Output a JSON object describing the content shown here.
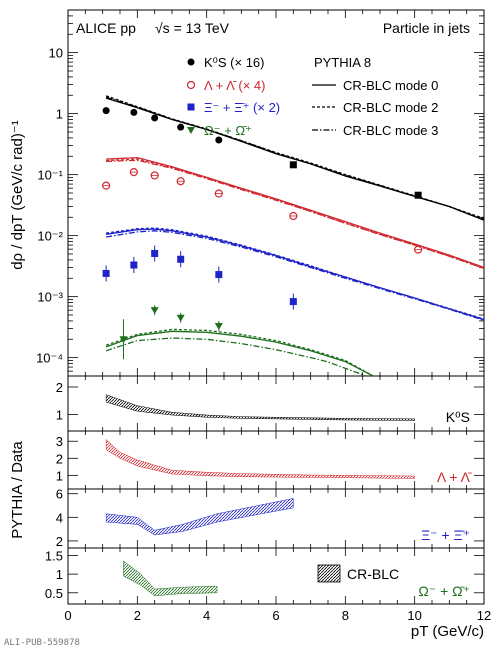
{
  "header": {
    "experiment": "ALICE pp",
    "energy": "√s = 13 TeV",
    "topic": "Particle in jets"
  },
  "legend_main": {
    "kshort": "K⁰S (× 16)",
    "lambda": "Λ + Λ̄ (× 4)",
    "xi": "Ξ⁻ + Ξ̄⁺ (× 2)",
    "omega": "Ω⁻ + Ω̄⁺",
    "generator": "PYTHIA 8",
    "mode0": "CR-BLC mode 0",
    "mode2": "CR-BLC mode 2",
    "mode3": "CR-BLC mode 3"
  },
  "ratio_labels": {
    "kshort": "K⁰S",
    "lambda": "Λ + Λ̄",
    "xi": "Ξ⁻ + Ξ̄⁺",
    "omega": "Ω⁻ + Ω̄⁺",
    "band": "CR-BLC"
  },
  "footer": {
    "pub_id": "ALI-PUB-559878"
  },
  "colors": {
    "kshort": "#000000",
    "lambda": "#d0282f",
    "xi": "#1f24c8",
    "omega": "#1e6e1e"
  },
  "chart_data": {
    "type": "scatter",
    "xlabel": "pT (GeV/c)",
    "ylabel_main": "dρ / dpT (GeV/c rad)⁻¹",
    "ylabel_ratio": "PYTHIA / Data",
    "xlim": [
      0,
      12
    ],
    "xticks": [
      "0",
      "2",
      "4",
      "6",
      "8",
      "10",
      "12"
    ],
    "main": {
      "yscale": "log",
      "ylim": [
        5e-05,
        50
      ],
      "yticks": [
        {
          "v": 0.0001,
          "label": "10⁻⁴"
        },
        {
          "v": 0.001,
          "label": "10⁻³"
        },
        {
          "v": 0.01,
          "label": "10⁻²"
        },
        {
          "v": 0.1,
          "label": "10⁻¹"
        },
        {
          "v": 1,
          "label": "1"
        },
        {
          "v": 10,
          "label": "10"
        }
      ],
      "data": [
        {
          "name": "kshort",
          "points": [
            [
              1.1,
              1.12
            ],
            [
              1.9,
              1.05
            ],
            [
              2.5,
              0.85
            ],
            [
              3.25,
              0.6
            ],
            [
              4.35,
              0.37
            ],
            [
              6.5,
              0.145
            ],
            [
              10.1,
              0.046
            ]
          ]
        },
        {
          "name": "lambda",
          "points": [
            [
              1.1,
              0.066
            ],
            [
              1.9,
              0.11
            ],
            [
              2.5,
              0.097
            ],
            [
              3.25,
              0.078
            ],
            [
              4.35,
              0.049
            ],
            [
              6.5,
              0.021
            ],
            [
              10.1,
              0.0059
            ]
          ]
        },
        {
          "name": "xi",
          "points": [
            [
              1.1,
              0.0024
            ],
            [
              1.9,
              0.0033
            ],
            [
              2.5,
              0.0051
            ],
            [
              3.25,
              0.0041
            ],
            [
              4.35,
              0.0023
            ],
            [
              6.5,
              0.00083
            ]
          ]
        },
        {
          "name": "omega",
          "points": [
            [
              1.6,
              0.0002
            ],
            [
              2.5,
              0.0006
            ],
            [
              3.25,
              0.00045
            ],
            [
              4.35,
              0.00033
            ]
          ]
        }
      ],
      "models": [
        {
          "name": "kshort",
          "mode0": [
            [
              1.1,
              1.8
            ],
            [
              2,
              1.25
            ],
            [
              3,
              0.8
            ],
            [
              4,
              0.55
            ],
            [
              5,
              0.35
            ],
            [
              6,
              0.22
            ],
            [
              7,
              0.15
            ],
            [
              8,
              0.095
            ],
            [
              9,
              0.065
            ],
            [
              10,
              0.044
            ],
            [
              11,
              0.03
            ],
            [
              12,
              0.018
            ]
          ],
          "mode2": [
            [
              1.1,
              1.95
            ],
            [
              2,
              1.3
            ],
            [
              3,
              0.82
            ],
            [
              4,
              0.56
            ],
            [
              5,
              0.36
            ],
            [
              6,
              0.23
            ],
            [
              7,
              0.155
            ],
            [
              8,
              0.1
            ],
            [
              9,
              0.067
            ],
            [
              10,
              0.045
            ],
            [
              11,
              0.03
            ],
            [
              12,
              0.019
            ]
          ],
          "mode3": [
            [
              1.1,
              1.85
            ],
            [
              2,
              1.28
            ],
            [
              3,
              0.81
            ],
            [
              4,
              0.55
            ],
            [
              5,
              0.36
            ],
            [
              6,
              0.225
            ],
            [
              7,
              0.15
            ],
            [
              8,
              0.098
            ],
            [
              9,
              0.066
            ],
            [
              10,
              0.044
            ],
            [
              11,
              0.03
            ],
            [
              12,
              0.018
            ]
          ]
        },
        {
          "name": "lambda",
          "mode0": [
            [
              1.1,
              0.18
            ],
            [
              2,
              0.19
            ],
            [
              3,
              0.135
            ],
            [
              4,
              0.09
            ],
            [
              5,
              0.06
            ],
            [
              6,
              0.04
            ],
            [
              7,
              0.026
            ],
            [
              8,
              0.017
            ],
            [
              9,
              0.011
            ],
            [
              10,
              0.0073
            ],
            [
              11,
              0.0048
            ],
            [
              12,
              0.003
            ]
          ],
          "mode2": [
            [
              1.1,
              0.17
            ],
            [
              2,
              0.18
            ],
            [
              3,
              0.13
            ],
            [
              4,
              0.088
            ],
            [
              5,
              0.058
            ],
            [
              6,
              0.039
            ],
            [
              7,
              0.025
            ],
            [
              8,
              0.016
            ],
            [
              9,
              0.0105
            ],
            [
              10,
              0.007
            ],
            [
              11,
              0.0046
            ],
            [
              12,
              0.0029
            ]
          ],
          "mode3": [
            [
              1.1,
              0.165
            ],
            [
              2,
              0.172
            ],
            [
              3,
              0.127
            ],
            [
              4,
              0.086
            ],
            [
              5,
              0.057
            ],
            [
              6,
              0.038
            ],
            [
              7,
              0.025
            ],
            [
              8,
              0.016
            ],
            [
              9,
              0.0104
            ],
            [
              10,
              0.007
            ],
            [
              11,
              0.0046
            ],
            [
              12,
              0.0029
            ]
          ]
        },
        {
          "name": "xi",
          "mode0": [
            [
              1.1,
              0.0105
            ],
            [
              2,
              0.0125
            ],
            [
              2.5,
              0.0128
            ],
            [
              3,
              0.012
            ],
            [
              4,
              0.0095
            ],
            [
              5,
              0.0068
            ],
            [
              6,
              0.0047
            ],
            [
              7,
              0.0031
            ],
            [
              8,
              0.0021
            ],
            [
              9,
              0.0014
            ],
            [
              10,
              0.00095
            ],
            [
              11,
              0.00063
            ],
            [
              12,
              0.00042
            ]
          ],
          "mode2": [
            [
              1.1,
              0.011
            ],
            [
              2,
              0.013
            ],
            [
              2.5,
              0.0133
            ],
            [
              3,
              0.0125
            ],
            [
              4,
              0.0098
            ],
            [
              5,
              0.007
            ],
            [
              6,
              0.0048
            ],
            [
              7,
              0.0032
            ],
            [
              8,
              0.0021
            ],
            [
              9,
              0.0014
            ],
            [
              10,
              0.00095
            ],
            [
              11,
              0.00064
            ],
            [
              12,
              0.00043
            ]
          ],
          "mode3": [
            [
              1.1,
              0.0095
            ],
            [
              2,
              0.0115
            ],
            [
              2.5,
              0.012
            ],
            [
              3,
              0.0113
            ],
            [
              4,
              0.009
            ],
            [
              5,
              0.0065
            ],
            [
              6,
              0.0045
            ],
            [
              7,
              0.003
            ],
            [
              8,
              0.002
            ],
            [
              9,
              0.00135
            ],
            [
              10,
              0.00092
            ],
            [
              11,
              0.00062
            ],
            [
              12,
              0.00041
            ]
          ]
        },
        {
          "name": "omega",
          "mode0": [
            [
              1.1,
              0.00015
            ],
            [
              2,
              0.00023
            ],
            [
              3,
              0.00027
            ],
            [
              4,
              0.00026
            ],
            [
              5,
              0.000225
            ],
            [
              6,
              0.00018
            ],
            [
              7,
              0.00013
            ],
            [
              8,
              8.6e-05
            ],
            [
              8.8,
              5e-05
            ]
          ],
          "mode2": [
            [
              1.1,
              0.00016
            ],
            [
              2,
              0.00024
            ],
            [
              3,
              0.00029
            ],
            [
              4,
              0.00028
            ],
            [
              5,
              0.00024
            ],
            [
              6,
              0.00019
            ],
            [
              7,
              0.000135
            ],
            [
              8,
              9e-05
            ],
            [
              8.8,
              5e-05
            ]
          ],
          "mode3": [
            [
              1.1,
              0.00013
            ],
            [
              2,
              0.00019
            ],
            [
              3,
              0.00021
            ],
            [
              4,
              0.0002
            ],
            [
              5,
              0.00017
            ],
            [
              6,
              0.000135
            ],
            [
              7,
              0.0001
            ],
            [
              7.5,
              8.5e-05
            ],
            [
              8.6,
              5e-05
            ]
          ]
        }
      ]
    },
    "ratios": [
      {
        "name": "kshort",
        "ylim": [
          0.4,
          2.4
        ],
        "yticks": [
          1,
          2
        ],
        "band": [
          [
            1.1,
            1.45,
            1.72
          ],
          [
            2,
            1.12,
            1.32
          ],
          [
            3,
            0.98,
            1.08
          ],
          [
            4,
            0.9,
            0.98
          ],
          [
            5,
            0.86,
            0.92
          ],
          [
            6,
            0.84,
            0.9
          ],
          [
            7,
            0.82,
            0.88
          ],
          [
            8,
            0.8,
            0.86
          ],
          [
            9,
            0.79,
            0.85
          ],
          [
            10,
            0.78,
            0.84
          ]
        ]
      },
      {
        "name": "lambda",
        "ylim": [
          0.2,
          3.6
        ],
        "yticks": [
          1,
          2,
          3
        ],
        "band": [
          [
            1.1,
            2.5,
            3.1
          ],
          [
            1.5,
            2.0,
            2.35
          ],
          [
            2,
            1.55,
            1.9
          ],
          [
            3,
            1.08,
            1.3
          ],
          [
            4,
            0.98,
            1.18
          ],
          [
            5,
            0.92,
            1.1
          ],
          [
            6,
            0.9,
            1.06
          ],
          [
            7,
            0.88,
            1.02
          ],
          [
            8,
            0.86,
            1.0
          ],
          [
            9,
            0.84,
            0.98
          ],
          [
            10,
            0.82,
            0.96
          ]
        ]
      },
      {
        "name": "xi",
        "ylim": [
          1.4,
          6.4
        ],
        "yticks": [
          2,
          4,
          6
        ],
        "band": [
          [
            1.1,
            3.6,
            4.3
          ],
          [
            2,
            3.4,
            4.0
          ],
          [
            2.5,
            2.5,
            2.9
          ],
          [
            3.3,
            2.8,
            3.4
          ],
          [
            4.3,
            3.6,
            4.3
          ],
          [
            6.5,
            4.8,
            5.6
          ]
        ]
      },
      {
        "name": "omega",
        "ylim": [
          0.2,
          1.7
        ],
        "yticks": [
          0.5,
          1,
          1.5
        ],
        "band": [
          [
            1.6,
            0.95,
            1.35
          ],
          [
            2.1,
            0.7,
            1.0
          ],
          [
            2.5,
            0.42,
            0.6
          ],
          [
            3.3,
            0.48,
            0.65
          ],
          [
            4.3,
            0.5,
            0.68
          ]
        ]
      }
    ]
  }
}
